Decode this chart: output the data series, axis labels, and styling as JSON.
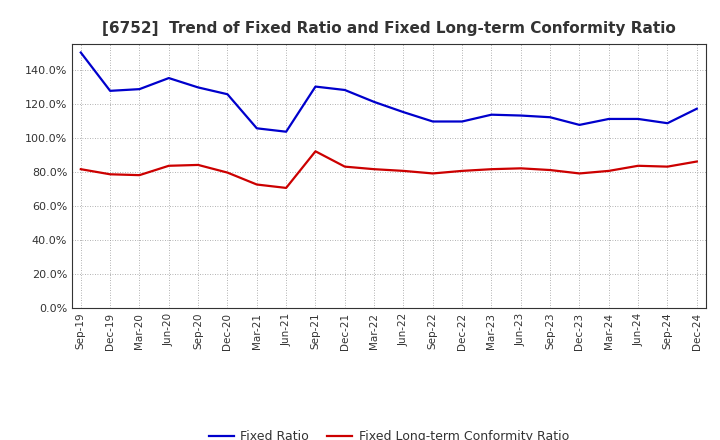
{
  "title": "[6752]  Trend of Fixed Ratio and Fixed Long-term Conformity Ratio",
  "x_labels": [
    "Sep-19",
    "Dec-19",
    "Mar-20",
    "Jun-20",
    "Sep-20",
    "Dec-20",
    "Mar-21",
    "Jun-21",
    "Sep-21",
    "Dec-21",
    "Mar-22",
    "Jun-22",
    "Sep-22",
    "Dec-22",
    "Mar-23",
    "Jun-23",
    "Sep-23",
    "Dec-23",
    "Mar-24",
    "Jun-24",
    "Sep-24",
    "Dec-24"
  ],
  "fixed_ratio": [
    150.0,
    127.5,
    128.5,
    135.0,
    129.5,
    125.5,
    105.5,
    103.5,
    130.0,
    128.0,
    121.0,
    115.0,
    109.5,
    109.5,
    113.5,
    113.0,
    112.0,
    107.5,
    111.0,
    111.0,
    108.5,
    117.0
  ],
  "fixed_lt_ratio": [
    81.5,
    78.5,
    78.0,
    83.5,
    84.0,
    79.5,
    72.5,
    70.5,
    92.0,
    83.0,
    81.5,
    80.5,
    79.0,
    80.5,
    81.5,
    82.0,
    81.0,
    79.0,
    80.5,
    83.5,
    83.0,
    86.0
  ],
  "fixed_ratio_color": "#0000CC",
  "fixed_lt_ratio_color": "#CC0000",
  "ylim": [
    0,
    155
  ],
  "yticks": [
    0,
    20,
    40,
    60,
    80,
    100,
    120,
    140
  ],
  "background_color": "#FFFFFF",
  "plot_bg_color": "#FFFFFF",
  "grid_color": "#999999",
  "title_color": "#333333",
  "legend_fixed": "Fixed Ratio",
  "legend_lt": "Fixed Long-term Conformity Ratio",
  "title_fontsize": 11
}
